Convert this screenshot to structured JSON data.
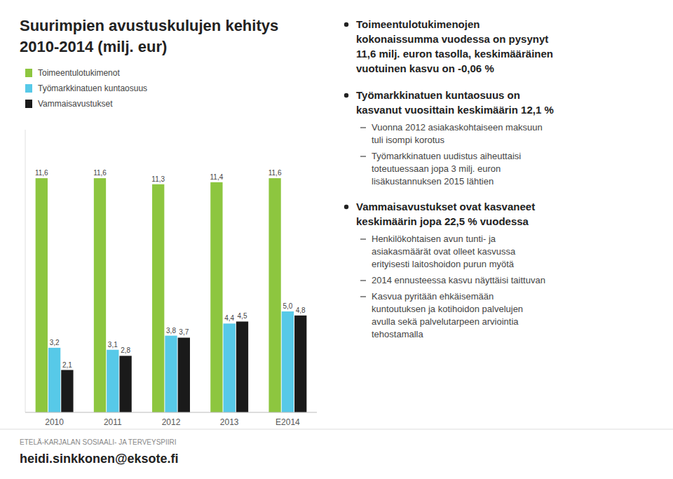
{
  "chart_data": {
    "type": "bar",
    "title": "Suurimpien avustuskulujen kehitys",
    "subtitle": "2010-2014 (milj. eur)",
    "categories": [
      "2010",
      "2011",
      "2012",
      "2013",
      "E2014"
    ],
    "series": [
      {
        "name": "Toimeentulotukimenot",
        "color": "#8dc63f",
        "values": [
          11.6,
          11.6,
          11.3,
          11.4,
          11.6
        ],
        "value_labels": [
          "11,6",
          "11,6",
          "11,3",
          "11,4",
          "11,6"
        ]
      },
      {
        "name": "Työmarkkinatuen kuntaosuus",
        "color": "#57c9e8",
        "values": [
          3.2,
          3.1,
          3.8,
          4.4,
          5.0
        ],
        "value_labels": [
          "3,2",
          "3,1",
          "3,8",
          "4,4",
          "5,0"
        ]
      },
      {
        "name": "Vammaisavustukset",
        "color": "#1a1a1a",
        "values": [
          2.1,
          2.8,
          3.7,
          4.5,
          4.8
        ],
        "value_labels": [
          "2,1",
          "2,8",
          "3,7",
          "4,5",
          "4,8"
        ]
      }
    ],
    "ylim": [
      0,
      14
    ],
    "data_labels": true,
    "tick_labels": "x",
    "grid": false,
    "legend": "top",
    "annotations": [
      {
        "lines": [
          "Toimeentulotukimenojen",
          "kokonaissumma vuodessa on pysynyt",
          "11,6 milj. euron tasolla, keskimääräinen",
          "vuotuinen kasvu on -0,06 %"
        ],
        "notes": []
      },
      {
        "lines": [
          "Työmarkkinatuen kuntaosuus on",
          "kasvanut vuosittain keskimäärin 12,1 %"
        ],
        "notes": [
          [
            "Vuonna 2012 asiakaskohtaiseen maksuun",
            "tuli isompi korotus"
          ],
          [
            "Työmarkkinatuen uudistus aiheuttaisi",
            "toteutuessaan jopa 3 milj. euron",
            "lisäkustannuksen 2015 lähtien"
          ]
        ]
      },
      {
        "lines": [
          "Vammaisavustukset ovat kasvaneet",
          "keskimäärin jopa 22,5 % vuodessa"
        ],
        "notes": [
          [
            "Henkilökohtaisen avun tunti- ja",
            "asiakasmäärät ovat olleet kasvussa",
            "erityisesti laitoshoidon purun myötä"
          ],
          [
            "2014 ennusteessa kasvu näyttäisi taittuvan"
          ],
          [
            "Kasvua pyritään ehkäisemään",
            "kuntoutuksen ja kotihoidon palvelujen",
            "avulla sekä palvelutarpeen arviointia",
            "tehostamalla"
          ]
        ]
      }
    ],
    "footer": [
      "ETELÄ-KARJALAN SOSIAALI- JA TERVEYSPIIRI",
      "heidi.sinkkonen@eksote.fi"
    ]
  }
}
